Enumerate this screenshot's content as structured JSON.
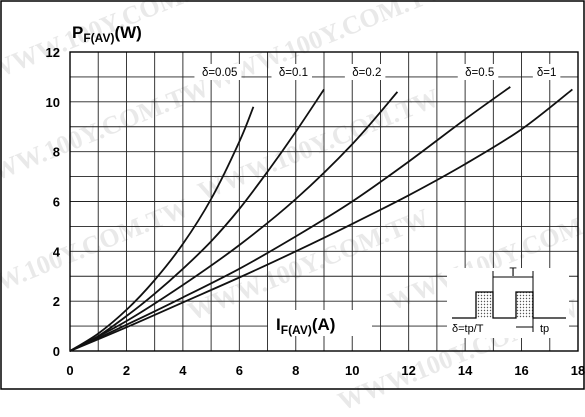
{
  "watermark": "WWW.100Y.COM.TW",
  "colors": {
    "line": "#111111",
    "grid": "#222222",
    "background": "#ffffff",
    "watermark": "#e9e9e9"
  },
  "chart_data": {
    "type": "line",
    "ylabel_main": "P",
    "ylabel_sub": "F(AV)",
    "ylabel_unit": "(W)",
    "xlabel_main": "I",
    "xlabel_sub": "F(AV)",
    "xlabel_unit": "(A)",
    "xlim": [
      0,
      18
    ],
    "ylim": [
      0,
      12
    ],
    "x_ticks": [
      "0",
      "2",
      "4",
      "6",
      "8",
      "10",
      "12",
      "14",
      "16",
      "18"
    ],
    "y_ticks": [
      "0",
      "2",
      "4",
      "6",
      "8",
      "10",
      "12"
    ],
    "grid": true,
    "series": [
      {
        "name": "δ=0.05",
        "x": [
          0,
          1,
          2,
          3,
          4,
          5,
          6,
          6.5
        ],
        "y": [
          0,
          0.7,
          1.65,
          2.85,
          4.3,
          6.1,
          8.4,
          9.8
        ]
      },
      {
        "name": "δ=0.1",
        "x": [
          0,
          1,
          2,
          3,
          4,
          5,
          6,
          7,
          8,
          9
        ],
        "y": [
          0,
          0.6,
          1.4,
          2.3,
          3.3,
          4.4,
          5.7,
          7.2,
          8.8,
          10.5
        ]
      },
      {
        "name": "δ=0.2",
        "x": [
          0,
          2,
          4,
          6,
          8,
          10,
          11.6
        ],
        "y": [
          0,
          1.2,
          2.65,
          4.25,
          6.1,
          8.3,
          10.4
        ]
      },
      {
        "name": "δ=0.5",
        "x": [
          0,
          2,
          4,
          6,
          8,
          10,
          12,
          14,
          15.6
        ],
        "y": [
          0,
          1.05,
          2.15,
          3.3,
          4.6,
          6.0,
          7.6,
          9.3,
          10.6
        ]
      },
      {
        "name": "δ=1",
        "x": [
          0,
          2,
          4,
          6,
          8,
          10,
          12,
          14,
          16,
          17.8
        ],
        "y": [
          0,
          0.95,
          1.95,
          2.95,
          4.0,
          5.1,
          6.25,
          7.5,
          8.9,
          10.5
        ]
      }
    ],
    "inset": {
      "period_label": "T",
      "pulse_label": "tp",
      "duty_formula": "δ=tp/T"
    }
  }
}
